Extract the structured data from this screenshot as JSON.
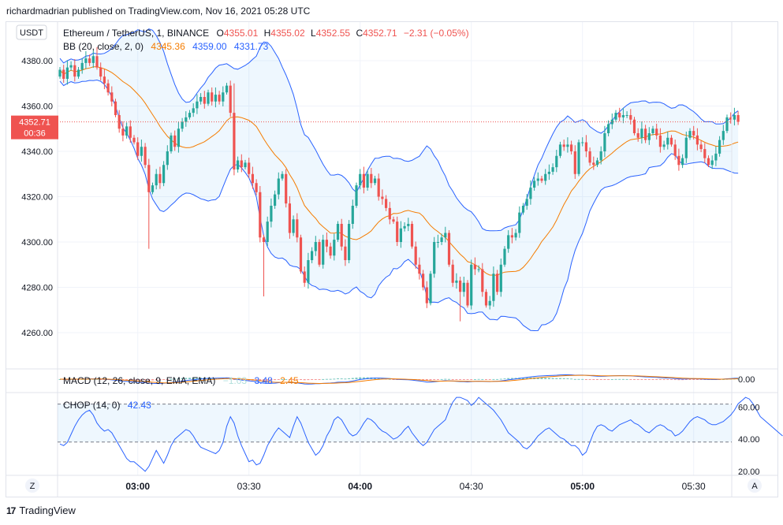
{
  "header": {
    "publisher": "richardmadrian published on TradingView.com, Nov 16, 2021 05:28 UTC"
  },
  "currency_badge": "USDT",
  "legend": {
    "symbol": "Ethereum / TetherUS, 1, BINANCE",
    "o_label": "O",
    "o_val": "4355.01",
    "h_label": "H",
    "h_val": "4355.02",
    "l_label": "L",
    "l_val": "4352.55",
    "c_label": "C",
    "c_val": "4352.71",
    "change": "−2.31 (−0.05%)"
  },
  "bb": {
    "label": "BB (20, close, 2, 0)",
    "basis": "4345.36",
    "upper": "4359.00",
    "lower": "4331.73"
  },
  "macd": {
    "label": "MACD (12, 26, close, 9, EMA, EMA)",
    "hist": "−1.03",
    "macd": "3.48",
    "signal": "2.45"
  },
  "chop": {
    "label": "CHOP (14, 0)",
    "value": "42.43"
  },
  "price_tag": {
    "price": "4352.71",
    "countdown": "00:36"
  },
  "colors": {
    "up": "#26a69a",
    "down": "#ef5350",
    "bb_basis": "#f57c00",
    "bb_band": "#2962ff",
    "chop": "#2962ff",
    "macd": "#2962ff",
    "signal": "#f57c00",
    "text": "#131722",
    "grid": "#f0f3fa"
  },
  "footer": {
    "brand": "TradingView"
  },
  "bottom_buttons": {
    "left": "Z",
    "right": "A"
  },
  "chart_data": [
    {
      "type": "candlestick",
      "title": "Ethereum / TetherUS, 1, BINANCE",
      "y_ticks": [
        "4380.00",
        "4360.00",
        "4340.00",
        "4320.00",
        "4300.00",
        "4280.00",
        "4260.00"
      ],
      "y_tick_values": [
        4380,
        4360,
        4340,
        4320,
        4300,
        4280,
        4260
      ],
      "x_ticks": [
        "03:00",
        "03:30",
        "04:00",
        "04:30",
        "05:00",
        "05:30"
      ],
      "x_tick_minutes": [
        180,
        210,
        240,
        270,
        300,
        330
      ],
      "x_start_minute": 159,
      "ylim": [
        4245,
        4390
      ],
      "close": [
        4376,
        4372,
        4377,
        4378,
        4373,
        4376,
        4379,
        4381,
        4379,
        4382,
        4377,
        4373,
        4370,
        4366,
        4362,
        4356,
        4350,
        4347,
        4351,
        4346,
        4344,
        4338,
        4342,
        4334,
        4322,
        4325,
        4330,
        4326,
        4334,
        4340,
        4347,
        4342,
        4350,
        4353,
        4355,
        4357,
        4359,
        4362,
        4364,
        4361,
        4366,
        4362,
        4365,
        4362,
        4366,
        4369,
        4357,
        4332,
        4336,
        4333,
        4335,
        4330,
        4326,
        4322,
        4302,
        4300,
        4309,
        4316,
        4321,
        4328,
        4330,
        4317,
        4304,
        4310,
        4302,
        4287,
        4282,
        4292,
        4296,
        4300,
        4290,
        4301,
        4298,
        4294,
        4301,
        4308,
        4298,
        4292,
        4308,
        4316,
        4325,
        4330,
        4324,
        4330,
        4326,
        4328,
        4320,
        4319,
        4315,
        4310,
        4309,
        4300,
        4306,
        4307,
        4308,
        4298,
        4290,
        4286,
        4280,
        4273,
        4286,
        4300,
        4300,
        4302,
        4304,
        4290,
        4282,
        4283,
        4278,
        4282,
        4272,
        4290,
        4288,
        4288,
        4278,
        4272,
        4274,
        4286,
        4278,
        4290,
        4297,
        4303,
        4302,
        4304,
        4313,
        4316,
        4319,
        4324,
        4327,
        4328,
        4327,
        4330,
        4331,
        4333,
        4338,
        4343,
        4342,
        4343,
        4340,
        4330,
        4344,
        4344,
        4340,
        4335,
        4334,
        4336,
        4340,
        4348,
        4352,
        4354,
        4357,
        4355,
        4356,
        4356,
        4354,
        4348,
        4346,
        4350,
        4345,
        4348,
        4350,
        4347,
        4342,
        4343,
        4346,
        4343,
        4338,
        4334,
        4337,
        4346,
        4349,
        4347,
        4343,
        4341,
        4337,
        4334,
        4336,
        4339,
        4345,
        4349,
        4355,
        4354,
        4356,
        4353
      ],
      "series": [
        {
          "name": "BB (20, close, 2, 0)",
          "lines": [
            "basis",
            "upper",
            "lower"
          ]
        }
      ]
    },
    {
      "type": "bar+line",
      "title": "MACD (12, 26, close, 9, EMA, EMA)",
      "y_ticks": [
        "0.00"
      ],
      "y_tick_values": [
        0
      ]
    },
    {
      "type": "line",
      "title": "CHOP (14, 0)",
      "y_ticks": [
        "60.00",
        "40.00",
        "20.00"
      ],
      "y_tick_values": [
        60,
        40,
        20
      ],
      "ylim": [
        18,
        68
      ],
      "bands": [
        61.8,
        38.2
      ],
      "values": [
        37,
        36,
        38,
        43,
        48,
        52,
        55,
        57,
        58,
        55,
        50,
        47,
        45,
        46,
        44,
        40,
        36,
        32,
        28,
        26,
        26,
        24,
        22,
        20,
        23,
        28,
        33,
        29,
        25,
        30,
        36,
        40,
        42,
        44,
        46,
        45,
        42,
        38,
        35,
        34,
        33,
        32,
        31,
        33,
        38,
        48,
        54,
        50,
        42,
        36,
        31,
        26,
        27,
        24,
        25,
        30,
        36,
        40,
        44,
        47,
        45,
        43,
        41,
        48,
        54,
        50,
        44,
        38,
        34,
        30,
        32,
        36,
        42,
        46,
        52,
        54,
        52,
        48,
        44,
        42,
        43,
        46,
        50,
        53,
        52,
        50,
        47,
        45,
        44,
        42,
        40,
        41,
        43,
        46,
        48,
        44,
        41,
        38,
        36,
        38,
        42,
        46,
        48,
        50,
        52,
        58,
        63,
        66,
        66,
        65,
        64,
        61,
        63,
        66,
        64,
        62,
        60,
        58,
        55,
        52,
        48,
        44,
        42,
        40,
        38,
        35,
        34,
        36,
        39,
        42,
        44,
        46,
        47,
        45,
        43,
        41,
        40,
        38,
        36,
        36,
        34,
        30,
        32,
        38,
        44,
        48,
        49,
        48,
        46,
        45,
        47,
        49,
        50,
        51,
        52,
        50,
        49,
        47,
        45,
        44,
        46,
        48,
        49,
        48,
        46,
        45,
        42,
        43,
        45,
        48,
        51,
        53,
        54,
        53,
        52,
        50,
        49,
        49,
        50,
        51,
        53,
        55,
        58,
        62,
        64,
        66,
        65,
        62,
        58,
        54,
        52,
        50,
        48,
        46,
        44,
        42
      ]
    }
  ]
}
